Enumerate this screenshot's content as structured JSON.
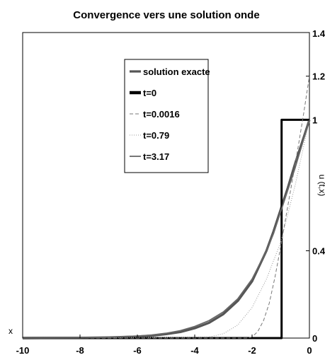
{
  "chart_data": {
    "type": "line",
    "title": "Convergence vers une solution onde",
    "xlabel": "x",
    "ylabel": "u (t,x)",
    "xlim": [
      -10,
      0
    ],
    "ylim": [
      0,
      1.4
    ],
    "x_ticks": [
      "-10",
      "-8",
      "-6",
      "-4",
      "-2",
      "0"
    ],
    "y_ticks_right": [
      "0",
      "0.4",
      "1",
      "1.2",
      "1.4"
    ],
    "y_tick_values": [
      0,
      0.4,
      1,
      1.2,
      1.4
    ],
    "x_tick_values": [
      -10,
      -8,
      -6,
      -4,
      -2,
      0
    ],
    "grid": false,
    "legend_position": "top-center",
    "series": [
      {
        "name": "solution exacte",
        "color": "#555555",
        "style": "solid-thick",
        "points": [
          [
            -10,
            0
          ],
          [
            -8,
            0.001
          ],
          [
            -7,
            0.003
          ],
          [
            -6,
            0.007
          ],
          [
            -5.5,
            0.011
          ],
          [
            -5,
            0.018
          ],
          [
            -4.5,
            0.028
          ],
          [
            -4,
            0.045
          ],
          [
            -3.5,
            0.07
          ],
          [
            -3,
            0.11
          ],
          [
            -2.5,
            0.17
          ],
          [
            -2,
            0.26
          ],
          [
            -1.5,
            0.4
          ],
          [
            -1.25,
            0.49
          ],
          [
            -1,
            0.59
          ],
          [
            -0.75,
            0.69
          ],
          [
            -0.5,
            0.8
          ],
          [
            -0.25,
            0.9
          ],
          [
            0,
            1
          ]
        ]
      },
      {
        "name": "t=0",
        "color": "#000000",
        "style": "solid-bold",
        "points": [
          [
            -10,
            0
          ],
          [
            -0.97,
            0
          ],
          [
            -0.97,
            1
          ],
          [
            0,
            1
          ]
        ]
      },
      {
        "name": "t=0.0016",
        "color": "#777777",
        "style": "dashed",
        "points": [
          [
            -10,
            0
          ],
          [
            -2.2,
            0
          ],
          [
            -2,
            0.005
          ],
          [
            -1.8,
            0.03
          ],
          [
            -1.6,
            0.08
          ],
          [
            -1.4,
            0.16
          ],
          [
            -1.2,
            0.28
          ],
          [
            -1,
            0.42
          ],
          [
            -0.8,
            0.57
          ],
          [
            -0.6,
            0.72
          ],
          [
            -0.4,
            0.87
          ],
          [
            -0.2,
            1.03
          ],
          [
            0,
            1.2
          ]
        ]
      },
      {
        "name": "t=0.79",
        "color": "#999999",
        "style": "dotted",
        "points": [
          [
            -10,
            0
          ],
          [
            -3.5,
            0.005
          ],
          [
            -3,
            0.02
          ],
          [
            -2.5,
            0.06
          ],
          [
            -2,
            0.14
          ],
          [
            -1.5,
            0.27
          ],
          [
            -1,
            0.44
          ],
          [
            -0.5,
            0.7
          ],
          [
            0,
            1
          ]
        ]
      },
      {
        "name": "t=3.17",
        "color": "#666666",
        "style": "solid-medium",
        "points": [
          [
            -10,
            0
          ],
          [
            -8,
            0.001
          ],
          [
            -7,
            0.004
          ],
          [
            -6,
            0.009
          ],
          [
            -5.5,
            0.014
          ],
          [
            -5,
            0.022
          ],
          [
            -4.5,
            0.034
          ],
          [
            -4,
            0.053
          ],
          [
            -3.5,
            0.08
          ],
          [
            -3,
            0.12
          ],
          [
            -2.5,
            0.18
          ],
          [
            -2,
            0.27
          ],
          [
            -1.5,
            0.4
          ],
          [
            -1.25,
            0.48
          ],
          [
            -1,
            0.58
          ],
          [
            -0.75,
            0.68
          ],
          [
            -0.5,
            0.78
          ],
          [
            -0.25,
            0.89
          ],
          [
            0,
            1
          ]
        ]
      }
    ]
  }
}
